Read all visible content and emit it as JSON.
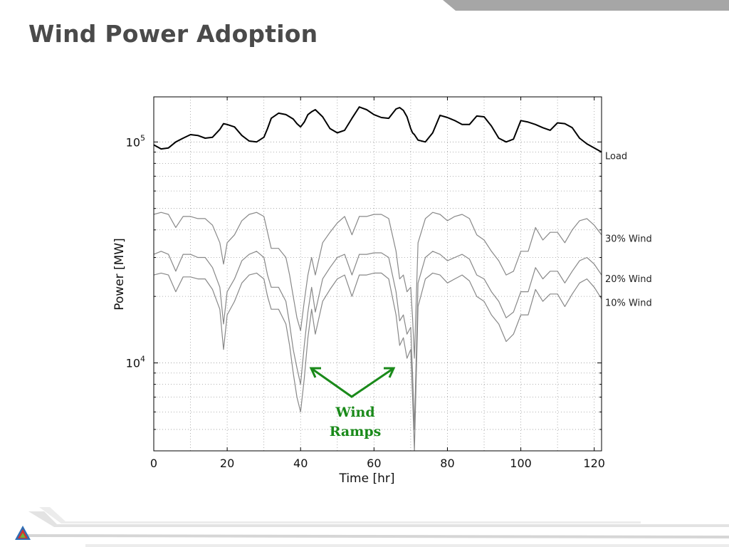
{
  "slide": {
    "title": "Wind Power Adoption"
  },
  "annotation": {
    "line1": "Wind",
    "line2": "Ramps",
    "color": "#1a8a1a"
  },
  "chart_data": {
    "type": "line",
    "title": "",
    "xlabel": "Time [hr]",
    "ylabel": "Power [MW]",
    "xlim": [
      0,
      122
    ],
    "ylim": [
      4000,
      160000
    ],
    "yscale": "log",
    "grid": true,
    "x_ticks": [
      0,
      20,
      40,
      60,
      80,
      100,
      120
    ],
    "y_tick_labels": [
      {
        "value": 100000,
        "base": "10",
        "exp": "5"
      },
      {
        "value": 10000,
        "base": "10",
        "exp": "4"
      }
    ],
    "x": [
      0,
      2,
      4,
      6,
      8,
      10,
      12,
      14,
      16,
      18,
      19,
      20,
      22,
      24,
      26,
      28,
      30,
      31,
      32,
      34,
      36,
      37,
      38,
      39,
      40,
      41,
      42,
      43,
      44,
      46,
      48,
      50,
      52,
      54,
      56,
      58,
      60,
      62,
      64,
      66,
      67,
      68,
      69,
      70,
      70.5,
      71,
      72,
      74,
      76,
      78,
      80,
      82,
      84,
      86,
      88,
      90,
      92,
      94,
      96,
      98,
      100,
      102,
      104,
      106,
      108,
      110,
      112,
      114,
      116,
      118,
      120,
      122
    ],
    "series": [
      {
        "name": "Load",
        "color": "#000000",
        "width": 2,
        "values": [
          97000,
          93000,
          94000,
          100000,
          104000,
          108000,
          107000,
          104000,
          105000,
          114000,
          121000,
          120000,
          117000,
          107000,
          101000,
          100000,
          105000,
          115000,
          128000,
          135000,
          133000,
          130000,
          127000,
          121000,
          117000,
          123000,
          133000,
          137000,
          140000,
          130000,
          115000,
          110000,
          113000,
          128000,
          144000,
          140000,
          133000,
          129000,
          128000,
          141000,
          143000,
          139000,
          130000,
          115000,
          110000,
          108000,
          102000,
          100000,
          110000,
          132000,
          129000,
          125000,
          120000,
          120000,
          131000,
          130000,
          118000,
          104000,
          100000,
          103000,
          125000,
          123000,
          120000,
          116000,
          113000,
          122000,
          121000,
          116000,
          104000,
          98000,
          94000,
          90000
        ]
      },
      {
        "name": "30% Wind",
        "color": "#888888",
        "width": 1.2,
        "values": [
          47000,
          48000,
          47000,
          41000,
          46000,
          46000,
          45000,
          45000,
          42000,
          35000,
          28000,
          35000,
          38000,
          44000,
          47000,
          48000,
          46000,
          39000,
          33000,
          33000,
          30000,
          25000,
          20000,
          16000,
          14000,
          19000,
          25000,
          30000,
          25000,
          35000,
          39000,
          43000,
          46000,
          38000,
          46000,
          46000,
          47000,
          47000,
          45000,
          32000,
          24000,
          25000,
          21000,
          22000,
          16000,
          10500,
          35000,
          45000,
          48000,
          47000,
          44000,
          46000,
          47000,
          45000,
          38000,
          36000,
          32000,
          29000,
          25000,
          26000,
          32000,
          32000,
          41000,
          36000,
          39000,
          39000,
          35000,
          40000,
          44000,
          45000,
          42000,
          38000
        ]
      },
      {
        "name": "20% Wind",
        "color": "#888888",
        "width": 1.2,
        "values": [
          31000,
          32000,
          31000,
          26000,
          31000,
          31000,
          30000,
          30000,
          27000,
          22000,
          15000,
          21000,
          24000,
          29000,
          31000,
          32000,
          30000,
          25000,
          22000,
          22000,
          19000,
          15000,
          11500,
          9500,
          8000,
          12000,
          17000,
          22000,
          17000,
          24000,
          27000,
          30000,
          31000,
          25000,
          31000,
          31000,
          31500,
          31500,
          30000,
          21000,
          15500,
          16500,
          13500,
          14500,
          9000,
          5000,
          23000,
          30000,
          32000,
          31000,
          29000,
          30000,
          31000,
          29500,
          25000,
          24000,
          21000,
          19000,
          16000,
          17000,
          21000,
          21000,
          27000,
          24000,
          26000,
          26000,
          23000,
          26000,
          29000,
          30000,
          28000,
          25000
        ]
      },
      {
        "name": "10% Wind",
        "color": "#888888",
        "width": 1.2,
        "values": [
          25000,
          25500,
          25000,
          21000,
          24500,
          24500,
          24000,
          24000,
          21500,
          17500,
          11500,
          16500,
          19000,
          23000,
          25000,
          25500,
          24000,
          20000,
          17500,
          17500,
          15000,
          12000,
          9000,
          7000,
          6000,
          8500,
          13000,
          17500,
          13500,
          19000,
          21500,
          24000,
          25000,
          20000,
          25000,
          25000,
          25500,
          25500,
          24000,
          16500,
          12000,
          13000,
          10500,
          11500,
          7000,
          4000,
          18000,
          24000,
          25500,
          25000,
          23000,
          24000,
          25000,
          23500,
          20000,
          19000,
          16500,
          15000,
          12500,
          13500,
          16500,
          16500,
          21500,
          19000,
          20500,
          20500,
          18000,
          20500,
          23000,
          24000,
          22000,
          19500
        ]
      }
    ]
  },
  "colors": {
    "title": "#4a4a4a",
    "band_gray": "#a6a6a6",
    "logo_blue": "#2e6db4",
    "logo_red": "#d9302c",
    "logo_green": "#6cb33f"
  }
}
